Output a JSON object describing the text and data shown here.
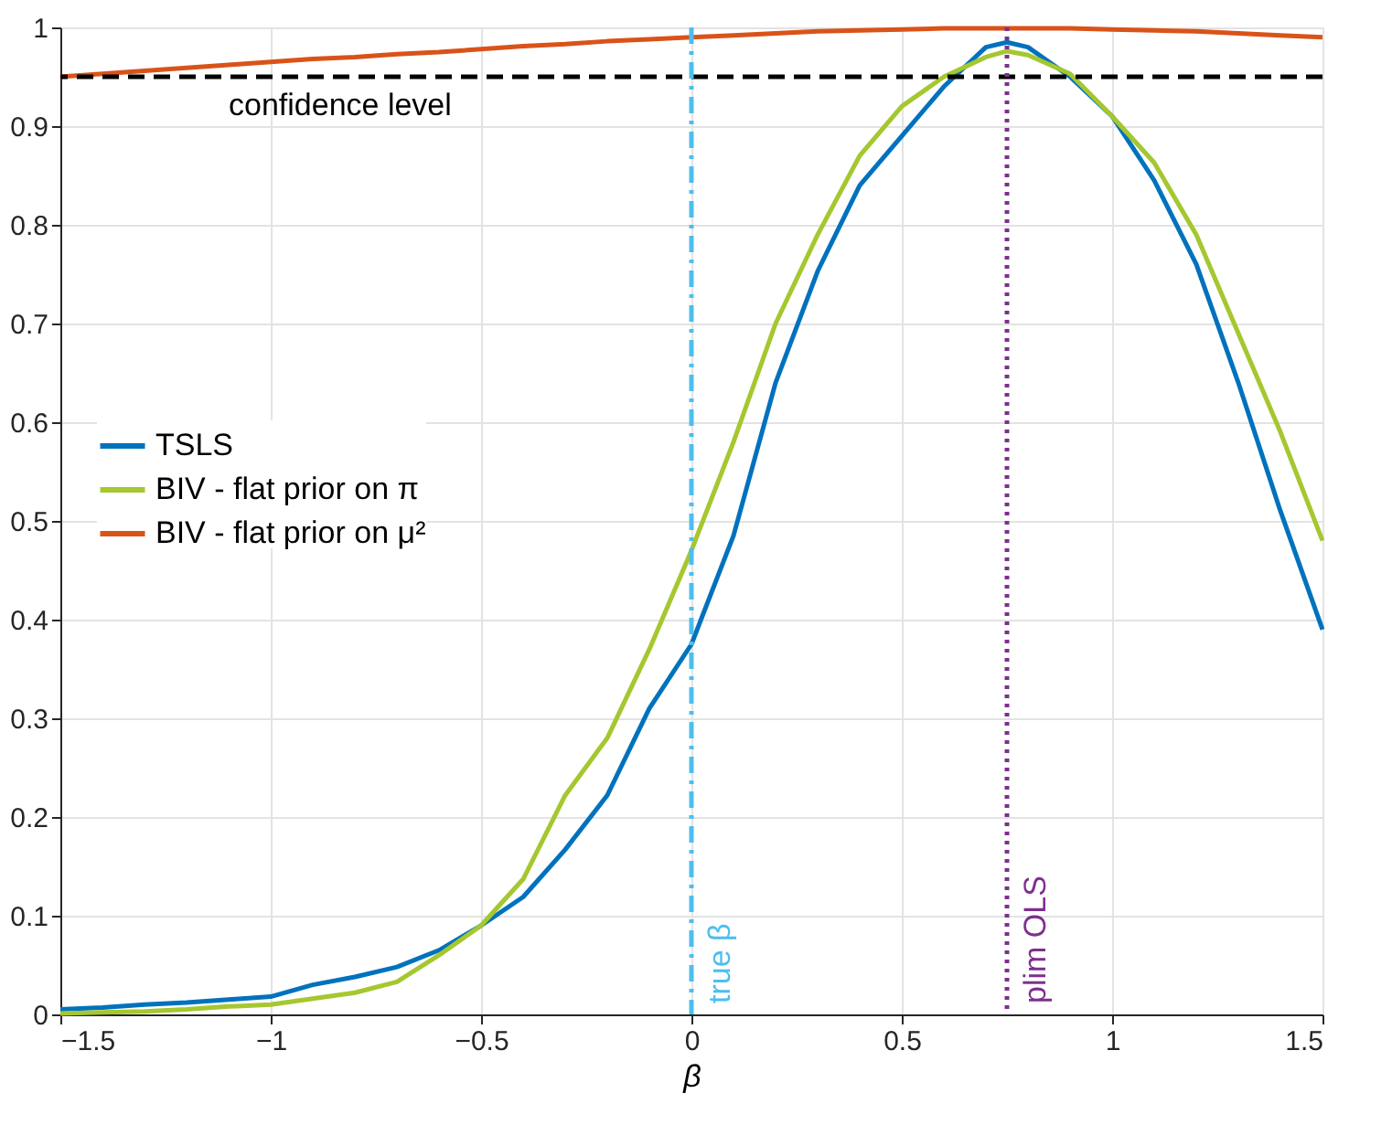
{
  "chart_data": {
    "type": "line",
    "xlabel": "β",
    "x": [
      -1.5,
      -1.4,
      -1.3,
      -1.2,
      -1.1,
      -1.0,
      -0.9,
      -0.8,
      -0.7,
      -0.6,
      -0.5,
      -0.4,
      -0.3,
      -0.2,
      -0.1,
      0,
      0.1,
      0.2,
      0.3,
      0.4,
      0.5,
      0.6,
      0.7,
      0.75,
      0.8,
      0.9,
      1.0,
      1.1,
      1.2,
      1.3,
      1.4,
      1.5
    ],
    "series": [
      {
        "name": "TSLS",
        "color": "#0072bd",
        "values": [
          0.005,
          0.007,
          0.01,
          0.012,
          0.015,
          0.018,
          0.03,
          0.038,
          0.048,
          0.065,
          0.09,
          0.119,
          0.167,
          0.222,
          0.31,
          0.375,
          0.485,
          0.64,
          0.753,
          0.84,
          0.89,
          0.94,
          0.98,
          0.985,
          0.98,
          0.95,
          0.91,
          0.845,
          0.76,
          0.64,
          0.51,
          0.39
        ]
      },
      {
        "name": "BIV - flat prior on π",
        "color": "#a5c72f",
        "values": [
          0.001,
          0.002,
          0.003,
          0.005,
          0.008,
          0.01,
          0.016,
          0.022,
          0.033,
          0.06,
          0.09,
          0.137,
          0.222,
          0.28,
          0.37,
          0.47,
          0.58,
          0.7,
          0.79,
          0.87,
          0.92,
          0.95,
          0.97,
          0.976,
          0.972,
          0.953,
          0.91,
          0.863,
          0.79,
          0.69,
          0.59,
          0.48
        ]
      },
      {
        "name": "BIV - flat prior on μ²",
        "color": "#d95319",
        "values": [
          0.95,
          0.953,
          0.956,
          0.959,
          0.962,
          0.965,
          0.968,
          0.97,
          0.973,
          0.975,
          0.978,
          0.981,
          0.983,
          0.986,
          0.988,
          0.99,
          0.992,
          0.994,
          0.996,
          0.997,
          0.998,
          0.999,
          0.999,
          0.999,
          0.999,
          0.999,
          0.998,
          0.997,
          0.996,
          0.994,
          0.992,
          0.99
        ]
      }
    ],
    "xlim": [
      -1.5,
      1.5
    ],
    "ylim": [
      0,
      1
    ],
    "xticks": [
      -1.5,
      -1,
      -0.5,
      0,
      0.5,
      1,
      1.5
    ],
    "yticks": [
      0,
      0.1,
      0.2,
      0.3,
      0.4,
      0.5,
      0.6,
      0.7,
      0.8,
      0.9,
      1
    ],
    "ref_lines": [
      {
        "axis": "y",
        "value": 0.95,
        "label": "confidence level",
        "color": "#000000",
        "line_style": "dashed"
      },
      {
        "axis": "x",
        "value": 0,
        "label": "true β",
        "color": "#4dbeee",
        "line_style": "dashed"
      },
      {
        "axis": "x",
        "value": 0.75,
        "label": "plim OLS",
        "color": "#7e2f8e",
        "line_style": "dotted"
      }
    ],
    "grid": true,
    "legend": "left",
    "line_style": "solid",
    "marker": "none"
  }
}
